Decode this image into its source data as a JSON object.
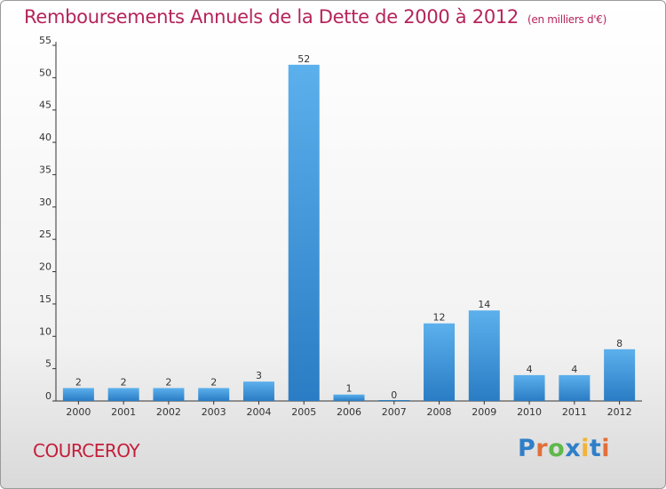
{
  "title": "Remboursements Annuels de la Dette de 2000 à 2012",
  "subtitle": "(en milliers d'€)",
  "commune": "COURCEROY",
  "logo": {
    "text": "Proxiti"
  },
  "colors": {
    "bar": "#3d8fd6",
    "bar_light": "#5aaeea",
    "title": "#b5245a",
    "commune": "#c41e3a",
    "axis": "#333333"
  },
  "chart_data": {
    "type": "bar",
    "title": "Remboursements Annuels de la Dette de 2000 à 2012",
    "subtitle": "(en milliers d'€)",
    "categories": [
      "2000",
      "2001",
      "2002",
      "2003",
      "2004",
      "2005",
      "2006",
      "2007",
      "2008",
      "2009",
      "2010",
      "2011",
      "2012"
    ],
    "values": [
      2,
      2,
      2,
      2,
      3,
      52,
      1,
      0,
      12,
      14,
      4,
      4,
      8
    ],
    "ylim": [
      0,
      55
    ],
    "yticks": [
      0,
      5,
      10,
      15,
      20,
      25,
      30,
      35,
      40,
      45,
      50,
      55
    ],
    "grid": false,
    "legend": "none"
  }
}
